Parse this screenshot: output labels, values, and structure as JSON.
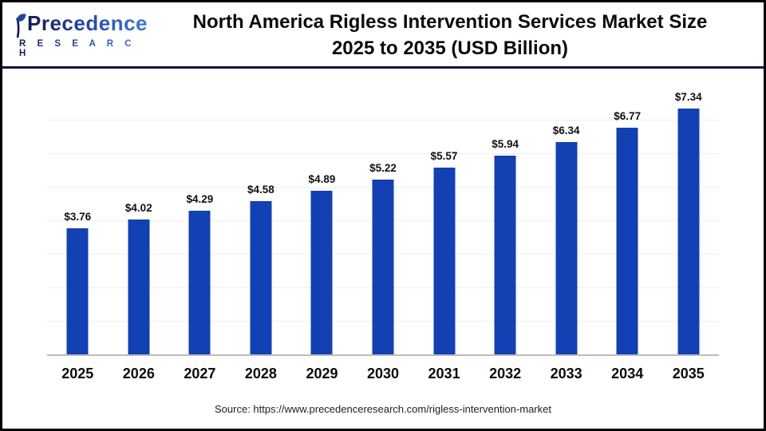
{
  "header": {
    "logo": {
      "name": "Precedence",
      "subname": "R E S E A R C H"
    },
    "title_line1": "North America Rigless Intervention Services Market Size",
    "title_line2": "2025 to 2035 (USD Billion)"
  },
  "chart_data": {
    "type": "bar",
    "title": "North America Rigless Intervention Services Market Size 2025 to 2035 (USD Billion)",
    "categories": [
      "2025",
      "2026",
      "2027",
      "2028",
      "2029",
      "2030",
      "2031",
      "2032",
      "2033",
      "2034",
      "2035"
    ],
    "values": [
      3.76,
      4.02,
      4.29,
      4.58,
      4.89,
      5.22,
      5.57,
      5.94,
      6.34,
      6.77,
      7.34
    ],
    "value_labels": [
      "$3.76",
      "$4.02",
      "$4.29",
      "$4.58",
      "$4.89",
      "$5.22",
      "$5.57",
      "$5.94",
      "$6.34",
      "$6.77",
      "$7.34"
    ],
    "unit": "USD Billion",
    "xlabel": "",
    "ylabel": "",
    "ylim": [
      0,
      8
    ],
    "grid_step": 1,
    "grid": "horizontal",
    "legend_position": "none",
    "bar_color": "#1340b2",
    "gridline_color": "#efefef",
    "axis_line_color": "#bcbcbc",
    "value_label_color": "#111111"
  },
  "footer": {
    "source": "Source: https://www.precedenceresearch.com/rigless-intervention-market"
  }
}
